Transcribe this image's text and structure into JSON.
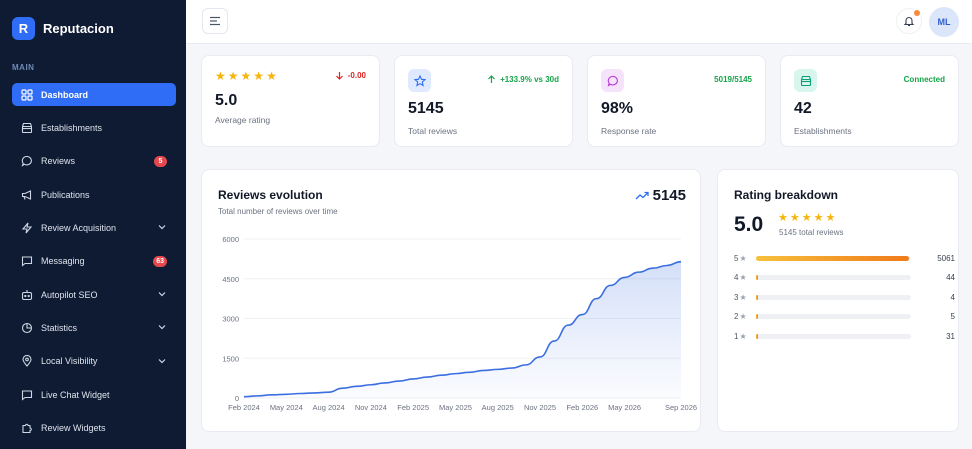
{
  "app": {
    "logo_letter": "R",
    "name": "Reputacion"
  },
  "sidebar": {
    "section_label": "MAIN",
    "items": [
      {
        "label": "Dashboard",
        "icon": "dashboard-icon",
        "active": true
      },
      {
        "label": "Establishments",
        "icon": "store-icon"
      },
      {
        "label": "Reviews",
        "icon": "chat-bubble-icon",
        "badge": "5"
      },
      {
        "label": "Publications",
        "icon": "megaphone-icon"
      },
      {
        "label": "Review Acquisition",
        "icon": "lightning-icon",
        "expandable": true
      },
      {
        "label": "Messaging",
        "icon": "message-square-icon",
        "badge": "63"
      },
      {
        "label": "Autopilot SEO",
        "icon": "robot-icon",
        "expandable": true
      },
      {
        "label": "Statistics",
        "icon": "pie-chart-icon",
        "expandable": true
      },
      {
        "label": "Local Visibility",
        "icon": "map-pin-icon",
        "expandable": true
      },
      {
        "label": "Live Chat Widget",
        "icon": "chat-widget-icon"
      },
      {
        "label": "Review Widgets",
        "icon": "puzzle-icon"
      }
    ]
  },
  "topbar": {
    "avatar_initials": "ML"
  },
  "stats": {
    "rating": {
      "value": "5.0",
      "label": "Average rating",
      "change": "-0.00",
      "stars": 5
    },
    "reviews": {
      "value": "5145",
      "label": "Total reviews",
      "change": "+133.9% vs 30d"
    },
    "response": {
      "value": "98%",
      "label": "Response rate",
      "ratio": "5019/5145"
    },
    "establishments": {
      "value": "42",
      "label": "Establishments",
      "status": "Connected"
    }
  },
  "colors": {
    "accent": "#2f6df6",
    "sidebar_bg": "#0f1b33",
    "positive": "#16a34a",
    "negative": "#dc2626",
    "star": "#f5b50a",
    "badge": "#e5484d"
  },
  "chart_data": {
    "type": "area",
    "title": "Reviews evolution",
    "subtitle": "Total number of reviews over time",
    "headline_total": "5145",
    "x_ticks": [
      "Feb 2024",
      "May 2024",
      "Aug 2024",
      "Nov 2024",
      "Feb 2025",
      "May 2025",
      "Aug 2025",
      "Nov 2025",
      "Feb 2026",
      "May 2026",
      "Sep 2026"
    ],
    "y_ticks": [
      "0",
      "1500",
      "3000",
      "4500",
      "6000"
    ],
    "ylim": [
      0,
      6000
    ],
    "grid": true,
    "x": [
      "Feb 2024",
      "Mar 2024",
      "Apr 2024",
      "May 2024",
      "Jun 2024",
      "Jul 2024",
      "Aug 2024",
      "Sep 2024",
      "Oct 2024",
      "Nov 2024",
      "Dec 2024",
      "Jan 2025",
      "Feb 2025",
      "Mar 2025",
      "Apr 2025",
      "May 2025",
      "Jun 2025",
      "Jul 2025",
      "Aug 2025",
      "Sep 2025",
      "Oct 2025",
      "Nov 2025",
      "Dec 2025",
      "Jan 2026",
      "Feb 2026",
      "Mar 2026",
      "Apr 2026",
      "May 2026",
      "Jun 2026",
      "Jul 2026",
      "Aug 2026",
      "Sep 2026"
    ],
    "series": [
      {
        "values": [
          50,
          80,
          120,
          140,
          170,
          190,
          220,
          370,
          440,
          500,
          570,
          640,
          720,
          790,
          860,
          920,
          970,
          1040,
          1080,
          1130,
          1250,
          1550,
          2150,
          2750,
          3150,
          3750,
          4250,
          4550,
          4750,
          4900,
          5000,
          5145
        ]
      }
    ]
  },
  "breakdown": {
    "title": "Rating breakdown",
    "average": "5.0",
    "stars": 5,
    "total_label": "5145 total reviews",
    "rows": [
      {
        "label": "5",
        "count": "5061",
        "fraction": 0.984
      },
      {
        "label": "4",
        "count": "44",
        "fraction": 0.012
      },
      {
        "label": "3",
        "count": "4",
        "fraction": 0.003
      },
      {
        "label": "2",
        "count": "5",
        "fraction": 0.003
      },
      {
        "label": "1",
        "count": "31",
        "fraction": 0.008
      }
    ]
  }
}
